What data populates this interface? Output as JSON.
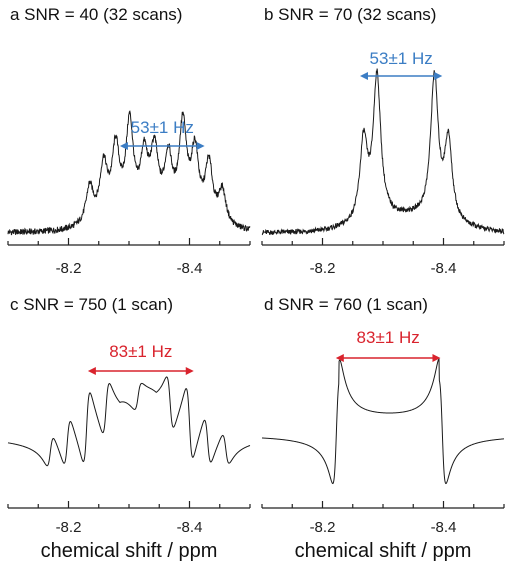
{
  "colors": {
    "trace": "#1a1a1a",
    "blue": "#3b7dc4",
    "red": "#d9232d",
    "axis": "#222222"
  },
  "chart_data": [
    {
      "panel": "a",
      "title": "SNR = 40 (32 scans)",
      "type": "line",
      "x_reversed": true,
      "xlim": [
        -8.1,
        -8.5
      ],
      "xticks": [
        -8.2,
        -8.4
      ],
      "xlabel": "",
      "splitting": {
        "label": "53±1 Hz",
        "from": -8.285,
        "to": -8.425,
        "color": "blue"
      },
      "peaks": [
        {
          "x": -8.235,
          "h": 0.27
        },
        {
          "x": -8.258,
          "h": 0.4
        },
        {
          "x": -8.278,
          "h": 0.5
        },
        {
          "x": -8.301,
          "h": 0.66
        },
        {
          "x": -8.325,
          "h": 0.4
        },
        {
          "x": -8.342,
          "h": 0.44
        },
        {
          "x": -8.365,
          "h": 0.4
        },
        {
          "x": -8.389,
          "h": 0.66
        },
        {
          "x": -8.409,
          "h": 0.48
        },
        {
          "x": -8.432,
          "h": 0.42
        },
        {
          "x": -8.454,
          "h": 0.25
        }
      ]
    },
    {
      "panel": "b",
      "title": "SNR = 70 (32 scans)",
      "type": "line",
      "x_reversed": true,
      "xlim": [
        -8.1,
        -8.5
      ],
      "xticks": [
        -8.2,
        -8.4
      ],
      "xlabel": "",
      "splitting": {
        "label": "53±1 Hz",
        "from": -8.262,
        "to": -8.398,
        "color": "blue"
      },
      "peaks": [
        {
          "x": -8.268,
          "h": 0.55
        },
        {
          "x": -8.29,
          "h": 0.98
        },
        {
          "x": -8.385,
          "h": 0.98
        },
        {
          "x": -8.408,
          "h": 0.55
        }
      ]
    },
    {
      "panel": "c",
      "title": "SNR = 750 (1 scan)",
      "type": "line",
      "x_reversed": true,
      "xlim": [
        -8.1,
        -8.5
      ],
      "xticks": [
        -8.2,
        -8.4
      ],
      "xlabel": "chemical shift / ppm",
      "splitting": {
        "label": "83±1 Hz",
        "from": -8.232,
        "to": -8.407,
        "color": "red"
      },
      "dispersive": [
        {
          "x": -8.17,
          "h": 0.25
        },
        {
          "x": -8.198,
          "h": 0.38
        },
        {
          "x": -8.23,
          "h": 0.58
        },
        {
          "x": -8.262,
          "h": 0.42
        },
        {
          "x": -8.315,
          "h": 0.2
        },
        {
          "x": -8.368,
          "h": -0.42
        },
        {
          "x": -8.4,
          "h": -0.58
        },
        {
          "x": -8.43,
          "h": -0.38
        },
        {
          "x": -8.46,
          "h": -0.25
        }
      ]
    },
    {
      "panel": "d",
      "title": "SNR = 760 (1 scan)",
      "type": "line",
      "x_reversed": true,
      "xlim": [
        -8.1,
        -8.5
      ],
      "xticks": [
        -8.2,
        -8.4
      ],
      "xlabel": "chemical shift / ppm",
      "splitting": {
        "label": "83±1 Hz",
        "from": -8.222,
        "to": -8.395,
        "color": "red"
      },
      "dispersive": [
        {
          "x": -8.223,
          "h": 0.8
        },
        {
          "x": -8.398,
          "h": -0.8
        }
      ]
    }
  ]
}
